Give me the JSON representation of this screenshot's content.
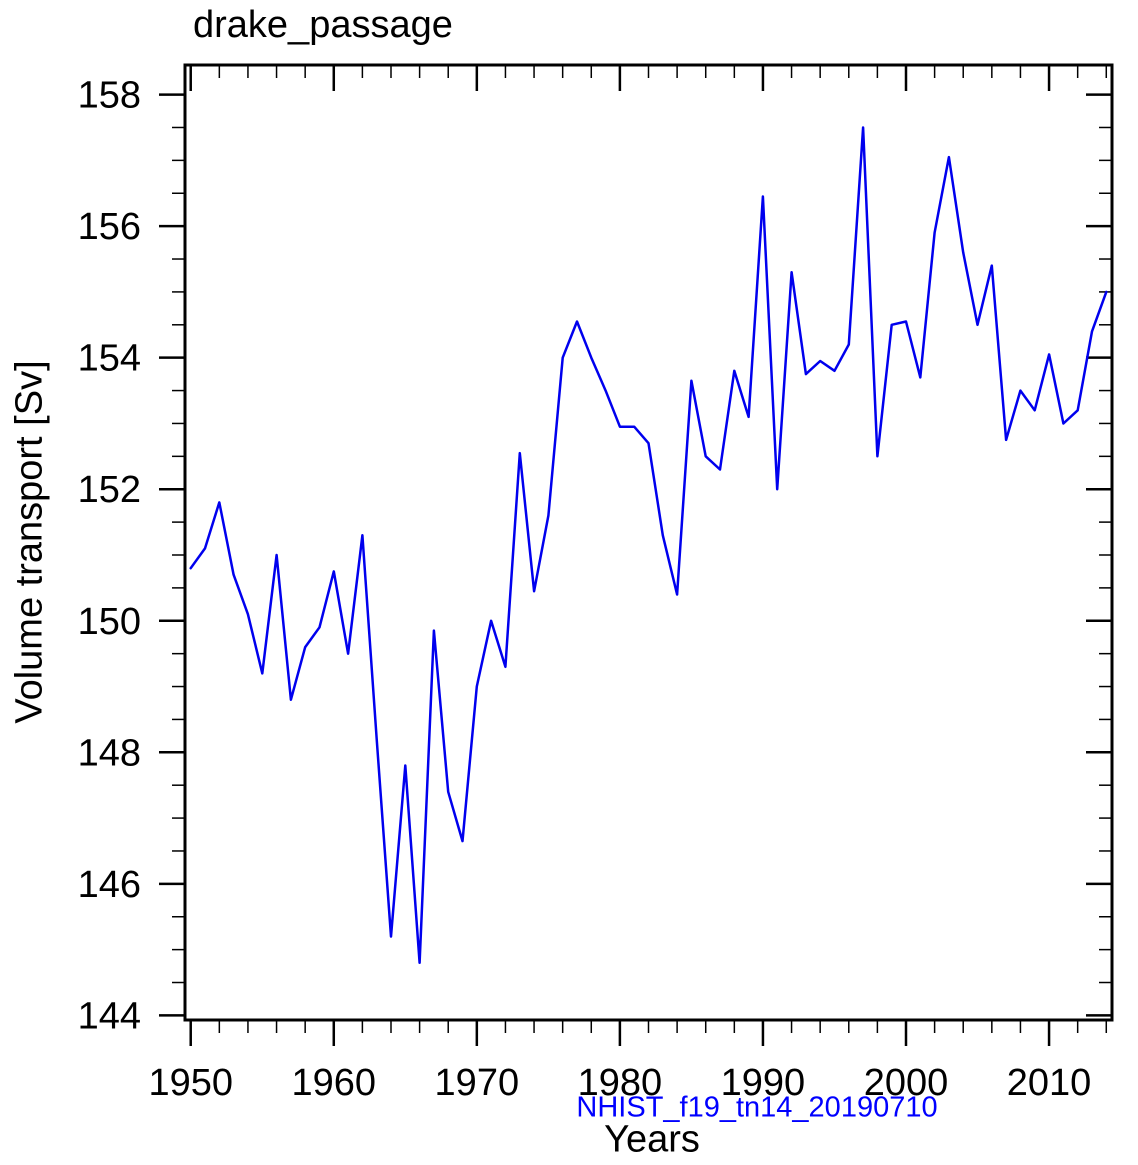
{
  "chart_data": {
    "type": "line",
    "title": "drake_passage",
    "xlabel": "Years",
    "ylabel": "Volume transport [Sv]",
    "annotation": "NHIST_f19_tn14_20190710",
    "grid": false,
    "legend": false,
    "xlim": [
      1949.6,
      2014.4
    ],
    "ylim": [
      143.93,
      158.45
    ],
    "x_major_ticks": [
      1950,
      1960,
      1970,
      1980,
      1990,
      2000,
      2010
    ],
    "x_minor_step": 2,
    "x_minor_min": 1950,
    "x_minor_max": 2014,
    "y_major_ticks": [
      144,
      146,
      148,
      150,
      152,
      154,
      156,
      158
    ],
    "y_minor_step": 0.5,
    "y_minor_min": 144,
    "y_minor_max": 158,
    "line_color": "#0000ee",
    "annotation_color": "#0000ff",
    "frame_color": "#000000",
    "text_color": "#000000",
    "series": [
      {
        "name": "drake_passage volume transport",
        "x": [
          1950,
          1951,
          1952,
          1953,
          1954,
          1955,
          1956,
          1957,
          1958,
          1959,
          1960,
          1961,
          1962,
          1963,
          1964,
          1965,
          1966,
          1967,
          1968,
          1969,
          1970,
          1971,
          1972,
          1973,
          1974,
          1975,
          1976,
          1977,
          1978,
          1979,
          1980,
          1981,
          1982,
          1983,
          1984,
          1985,
          1986,
          1987,
          1988,
          1989,
          1990,
          1991,
          1992,
          1993,
          1994,
          1995,
          1996,
          1997,
          1998,
          1999,
          2000,
          2001,
          2002,
          2003,
          2004,
          2005,
          2006,
          2007,
          2008,
          2009,
          2010,
          2011,
          2012,
          2013,
          2014
        ],
        "values": [
          150.8,
          151.1,
          151.8,
          150.7,
          150.1,
          149.2,
          151.0,
          148.8,
          149.6,
          149.9,
          150.75,
          149.5,
          151.3,
          148.2,
          145.2,
          147.8,
          144.8,
          149.85,
          147.4,
          146.65,
          149.0,
          150.0,
          149.3,
          152.55,
          150.45,
          151.6,
          154.0,
          154.55,
          154.0,
          153.5,
          152.95,
          152.95,
          152.7,
          151.3,
          150.4,
          153.65,
          152.5,
          152.3,
          153.8,
          153.1,
          156.45,
          152.0,
          155.3,
          153.75,
          153.95,
          153.8,
          154.2,
          157.5,
          152.5,
          154.5,
          154.55,
          153.7,
          155.9,
          157.05,
          155.6,
          154.5,
          155.4,
          152.75,
          153.5,
          153.2,
          154.05,
          153.0,
          153.2,
          154.4,
          155.0
        ]
      }
    ]
  }
}
